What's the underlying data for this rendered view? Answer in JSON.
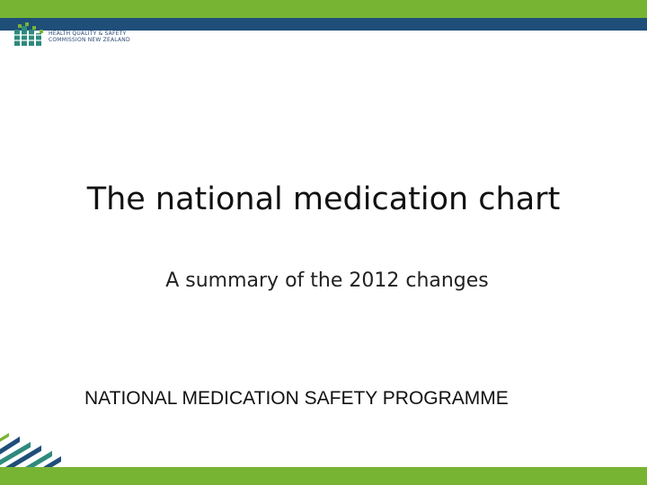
{
  "colors": {
    "green": "#78b433",
    "navy": "#1f4e79",
    "teal": "#2e8a7d",
    "logo_blue": "#2a4a75"
  },
  "logo": {
    "icon": "hqsc-logo-icon",
    "line1": "HEALTH QUALITY & SAFETY",
    "line2": "COMMISSION NEW ZEALAND"
  },
  "slide": {
    "title": "The national medication chart",
    "subtitle": "A summary of the 2012 changes",
    "programme": "NATIONAL MEDICATION SAFETY PROGRAMME"
  }
}
